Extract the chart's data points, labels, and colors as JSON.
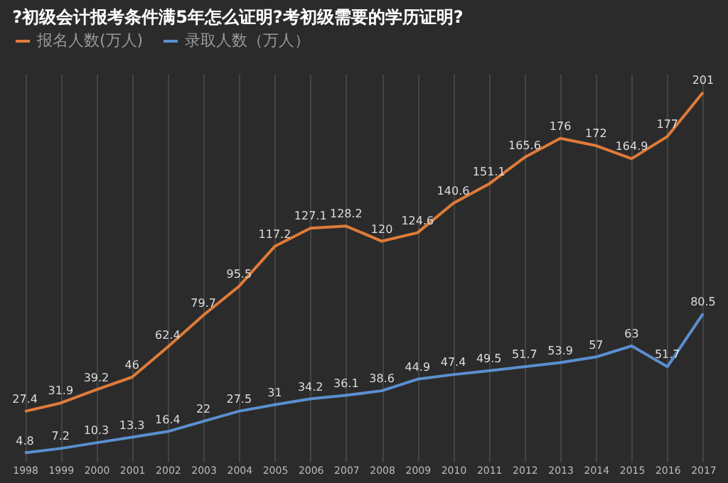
{
  "chart_data": {
    "type": "line",
    "title": "?初级会计报考条件满5年怎么证明?考初级需要的学历证明?",
    "categories": [
      "1998",
      "1999",
      "2000",
      "2001",
      "2002",
      "2003",
      "2004",
      "2005",
      "2006",
      "2007",
      "2008",
      "2009",
      "2010",
      "2011",
      "2012",
      "2013",
      "2014",
      "2015",
      "2016",
      "2017"
    ],
    "series": [
      {
        "name": "报名人数(万人)",
        "color": "#e07b39",
        "values": [
          27.4,
          31.9,
          39.2,
          46,
          62.4,
          79.7,
          95.5,
          117.2,
          127.1,
          128.2,
          120,
          124.6,
          140.6,
          151.1,
          165.6,
          176,
          172,
          164.9,
          177,
          201
        ]
      },
      {
        "name": "录取人数（万人）",
        "color": "#5b8fd0",
        "values": [
          4.8,
          7.2,
          10.3,
          13.3,
          16.4,
          22,
          27.5,
          31,
          34.2,
          36.1,
          38.6,
          44.9,
          47.4,
          49.5,
          51.7,
          53.9,
          57,
          63,
          51.7,
          80.5
        ]
      }
    ],
    "data_labels": true,
    "grid": "x",
    "legend": "top",
    "marker": "none",
    "line_style": "solid"
  }
}
